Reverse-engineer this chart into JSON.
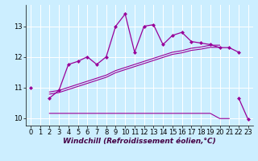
{
  "xlabel": "Windchill (Refroidissement éolien,°C)",
  "bg_color": "#cceeff",
  "line_color": "#990099",
  "x": [
    0,
    1,
    2,
    3,
    4,
    5,
    6,
    7,
    8,
    9,
    10,
    11,
    12,
    13,
    14,
    15,
    16,
    17,
    18,
    19,
    20,
    21,
    22,
    23
  ],
  "y_main": [
    11.0,
    null,
    10.65,
    10.9,
    11.75,
    11.85,
    12.0,
    11.75,
    12.0,
    13.0,
    13.4,
    12.15,
    13.0,
    13.05,
    12.4,
    12.7,
    12.8,
    12.5,
    12.45,
    12.4,
    12.3,
    12.3,
    12.15,
    null
  ],
  "y_line1": [
    null,
    null,
    10.85,
    10.9,
    11.0,
    11.1,
    11.2,
    11.3,
    11.4,
    11.55,
    11.65,
    11.75,
    11.85,
    11.95,
    12.05,
    12.15,
    12.2,
    12.28,
    12.32,
    12.38,
    12.38,
    null,
    null,
    null
  ],
  "y_line2": [
    null,
    null,
    10.78,
    10.83,
    10.93,
    11.03,
    11.13,
    11.23,
    11.33,
    11.48,
    11.58,
    11.68,
    11.78,
    11.88,
    11.98,
    12.08,
    12.13,
    12.21,
    12.25,
    12.31,
    12.31,
    null,
    null,
    null
  ],
  "y_flat": [
    null,
    null,
    10.15,
    10.15,
    10.15,
    10.15,
    10.15,
    10.15,
    10.15,
    10.15,
    10.15,
    10.15,
    10.15,
    10.15,
    10.15,
    10.15,
    10.15,
    10.15,
    10.15,
    10.15,
    9.98,
    9.98,
    null,
    null
  ],
  "y_drop": [
    null,
    null,
    null,
    null,
    null,
    null,
    null,
    null,
    null,
    null,
    null,
    null,
    null,
    null,
    null,
    null,
    null,
    null,
    null,
    null,
    null,
    null,
    10.65,
    9.95
  ],
  "ylim": [
    9.75,
    13.7
  ],
  "yticks": [
    10,
    11,
    12,
    13
  ],
  "xlim": [
    -0.5,
    23.5
  ],
  "xlabel_fontsize": 6.5,
  "tick_fontsize": 6.0
}
